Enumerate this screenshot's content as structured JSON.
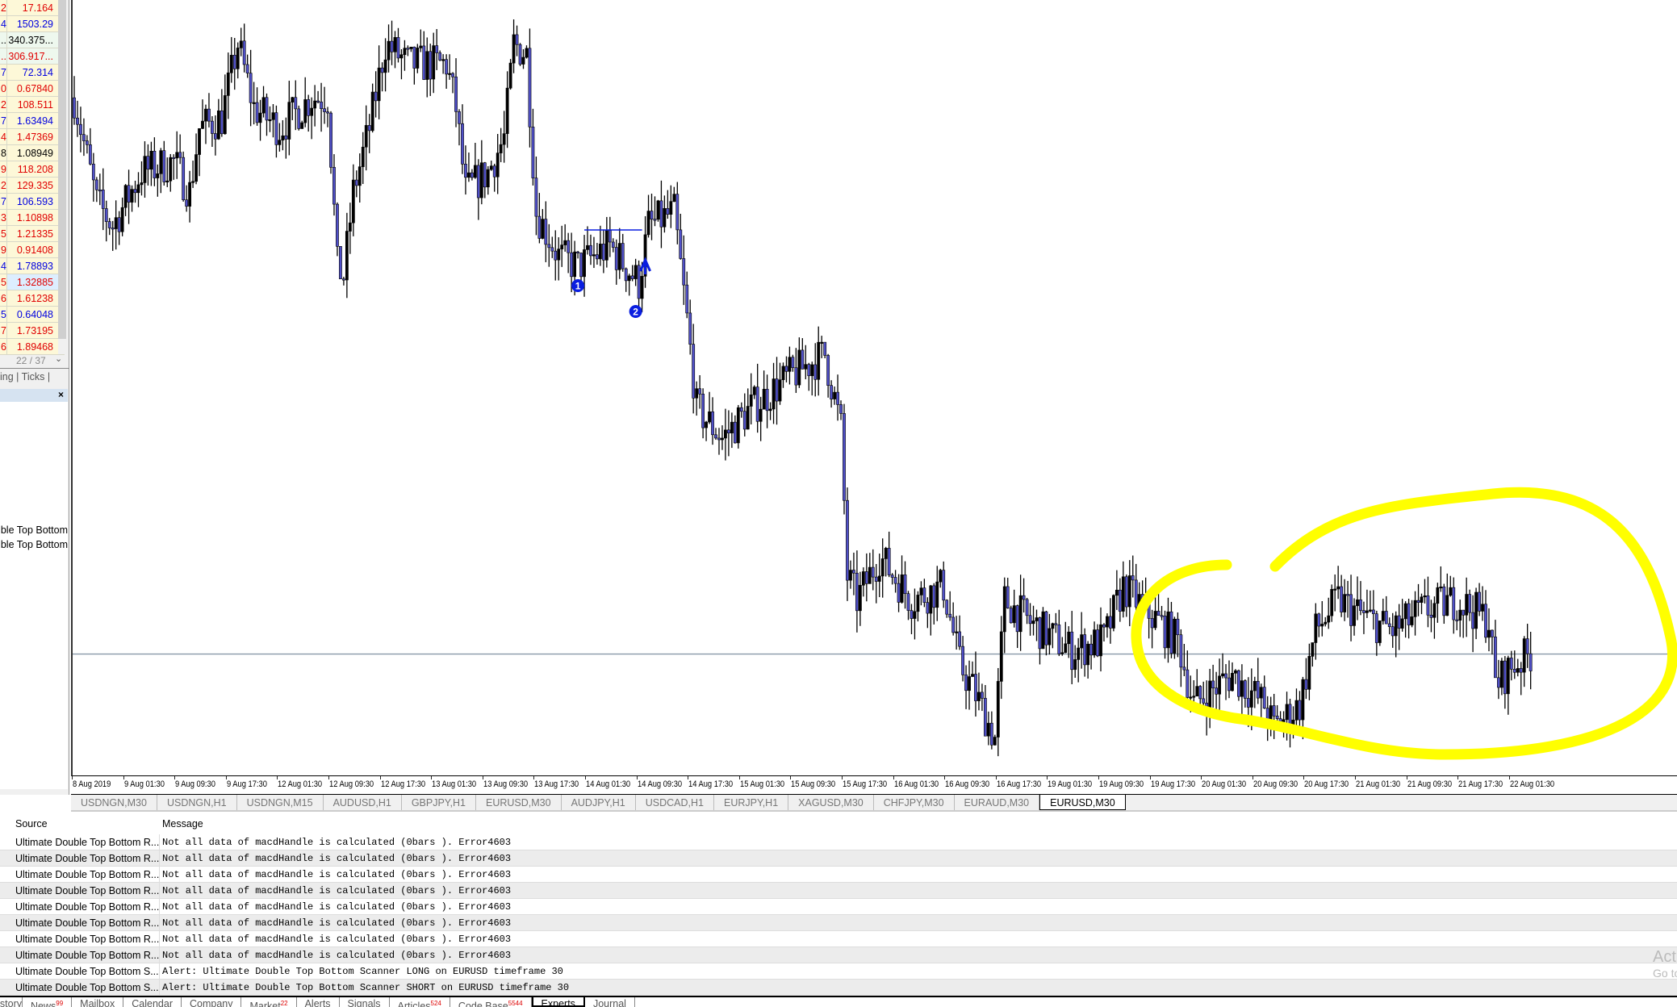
{
  "market_watch": {
    "rows": [
      {
        "bid_tail": "2",
        "ask": "17.164",
        "color": "#e00000"
      },
      {
        "bid_tail": "4",
        "ask": "1503.29",
        "color": "#0000e0"
      },
      {
        "bid_tail": "..",
        "ask": "340.375...",
        "color": "#000000"
      },
      {
        "bid_tail": "..",
        "ask": "306.917...",
        "color": "#e00000"
      },
      {
        "bid_tail": "7",
        "ask": "72.314",
        "color": "#0000e0"
      },
      {
        "bid_tail": "0",
        "ask": "0.67840",
        "color": "#e00000"
      },
      {
        "bid_tail": "2",
        "ask": "108.511",
        "color": "#e00000"
      },
      {
        "bid_tail": "7",
        "ask": "1.63494",
        "color": "#0000e0"
      },
      {
        "bid_tail": "4",
        "ask": "1.47369",
        "color": "#e00000"
      },
      {
        "bid_tail": "8",
        "ask": "1.08949",
        "color": "#000000"
      },
      {
        "bid_tail": "9",
        "ask": "118.208",
        "color": "#e00000"
      },
      {
        "bid_tail": "2",
        "ask": "129.335",
        "color": "#e00000"
      },
      {
        "bid_tail": "7",
        "ask": "106.593",
        "color": "#0000e0"
      },
      {
        "bid_tail": "3",
        "ask": "1.10898",
        "color": "#e00000"
      },
      {
        "bid_tail": "5",
        "ask": "1.21335",
        "color": "#e00000"
      },
      {
        "bid_tail": "9",
        "ask": "0.91408",
        "color": "#e00000"
      },
      {
        "bid_tail": "4",
        "ask": "1.78893",
        "color": "#0000e0"
      },
      {
        "bid_tail": "5",
        "ask": "1.32885",
        "color": "#e00000"
      },
      {
        "bid_tail": "6",
        "ask": "1.61238",
        "color": "#e00000"
      },
      {
        "bid_tail": "5",
        "ask": "0.64048",
        "color": "#0000e0"
      },
      {
        "bid_tail": "7",
        "ask": "1.73195",
        "color": "#e00000"
      },
      {
        "bid_tail": "6",
        "ask": "1.89468",
        "color": "#e00000"
      }
    ],
    "count": "22 / 37",
    "tabs": "ing  |  Ticks  |"
  },
  "navigator": {
    "items": [
      "uble Top Bottom",
      "uble Top Bottom"
    ]
  },
  "chart": {
    "x_labels": [
      "8 Aug 2019",
      "9 Aug 01:30",
      "9 Aug 09:30",
      "9 Aug 17:30",
      "12 Aug 01:30",
      "12 Aug 09:30",
      "12 Aug 17:30",
      "13 Aug 01:30",
      "13 Aug 09:30",
      "13 Aug 17:30",
      "14 Aug 01:30",
      "14 Aug 09:30",
      "14 Aug 17:30",
      "15 Aug 01:30",
      "15 Aug 09:30",
      "15 Aug 17:30",
      "16 Aug 01:30",
      "16 Aug 09:30",
      "16 Aug 17:30",
      "19 Aug 01:30",
      "19 Aug 09:30",
      "19 Aug 17:30",
      "20 Aug 01:30",
      "20 Aug 09:30",
      "20 Aug 17:30",
      "21 Aug 01:30",
      "21 Aug 09:30",
      "21 Aug 17:30",
      "22 Aug 01:30"
    ],
    "tabs": [
      "USDNGN,M30",
      "USDNGN,H1",
      "USDNGN,M15",
      "AUDUSD,H1",
      "GBPJPY,H1",
      "EURUSD,M30",
      "AUDJPY,H1",
      "USDCAD,H1",
      "EURJPY,H1",
      "XAGUSD,M30",
      "CHFJPY,M30",
      "EURAUD,M30",
      "EURUSD,M30"
    ],
    "active_tab": 12,
    "colors": {
      "bull_fill": "#000000",
      "bear_fill": "#5050c8",
      "annotation": "#ffff00",
      "marker": "#0a1ee0",
      "price_line": "#8898a8"
    },
    "markers": [
      "1",
      "2"
    ]
  },
  "chart_data": {
    "type": "candlestick",
    "symbol": "EURUSD",
    "timeframe": "M30",
    "note_units": "x = bar index from 8 Aug 2019, y = price",
    "close_path": [
      [
        0,
        1.1221
      ],
      [
        7,
        1.119
      ],
      [
        12,
        1.1183
      ],
      [
        21,
        1.1199
      ],
      [
        31,
        1.1202
      ],
      [
        36,
        1.1193
      ],
      [
        39,
        1.1212
      ],
      [
        46,
        1.1215
      ],
      [
        51,
        1.1237
      ],
      [
        56,
        1.1218
      ],
      [
        64,
        1.1212
      ],
      [
        74,
        1.1221
      ],
      [
        79,
        1.1221
      ],
      [
        82,
        1.1171
      ],
      [
        84,
        1.1168
      ],
      [
        87,
        1.1193
      ],
      [
        92,
        1.1212
      ],
      [
        97,
        1.1237
      ],
      [
        104,
        1.1231
      ],
      [
        111,
        1.1231
      ],
      [
        116,
        1.1231
      ],
      [
        119,
        1.1218
      ],
      [
        122,
        1.1193
      ],
      [
        129,
        1.1199
      ],
      [
        134,
        1.1209
      ],
      [
        137,
        1.1237
      ],
      [
        141,
        1.1234
      ],
      [
        144,
        1.1187
      ],
      [
        151,
        1.1174
      ],
      [
        157,
        1.1171
      ],
      [
        167,
        1.1177
      ],
      [
        176,
        1.1166
      ],
      [
        179,
        1.1183
      ],
      [
        187,
        1.1187
      ],
      [
        191,
        1.1155
      ],
      [
        194,
        1.1129
      ],
      [
        202,
        1.112
      ],
      [
        211,
        1.1129
      ],
      [
        224,
        1.1139
      ],
      [
        234,
        1.1145
      ],
      [
        239,
        1.1123
      ],
      [
        241,
        1.1079
      ],
      [
        244,
        1.1072
      ],
      [
        251,
        1.1085
      ],
      [
        261,
        1.1072
      ],
      [
        271,
        1.1076
      ],
      [
        276,
        1.1053
      ],
      [
        281,
        1.1044
      ],
      [
        287,
        1.1031
      ],
      [
        290,
        1.1072
      ],
      [
        297,
        1.1066
      ],
      [
        311,
        1.1057
      ],
      [
        321,
        1.106
      ],
      [
        327,
        1.1076
      ],
      [
        334,
        1.1069
      ],
      [
        344,
        1.106
      ],
      [
        349,
        1.1041
      ],
      [
        361,
        1.105
      ],
      [
        371,
        1.1041
      ],
      [
        374,
        1.1034
      ],
      [
        382,
        1.1041
      ],
      [
        387,
        1.1063
      ],
      [
        394,
        1.1072
      ],
      [
        404,
        1.1066
      ],
      [
        411,
        1.1063
      ],
      [
        421,
        1.1069
      ],
      [
        431,
        1.1072
      ],
      [
        441,
        1.1066
      ],
      [
        443,
        1.1047
      ],
      [
        449,
        1.1053
      ],
      [
        454,
        1.1056
      ]
    ],
    "current_price_line": 1.1056,
    "ylim": [
      1.102,
      1.125
    ]
  },
  "terminal": {
    "headers": {
      "source": "Source",
      "message": "Message"
    },
    "rows": [
      {
        "source": "Ultimate Double Top Bottom R...",
        "message": "Not all data of macdHandle is calculated (0bars ). Error4603"
      },
      {
        "source": "Ultimate Double Top Bottom R...",
        "message": "Not all data of macdHandle is calculated (0bars ). Error4603"
      },
      {
        "source": "Ultimate Double Top Bottom R...",
        "message": "Not all data of macdHandle is calculated (0bars ). Error4603"
      },
      {
        "source": "Ultimate Double Top Bottom R...",
        "message": "Not all data of macdHandle is calculated (0bars ). Error4603"
      },
      {
        "source": "Ultimate Double Top Bottom R...",
        "message": "Not all data of macdHandle is calculated (0bars ). Error4603"
      },
      {
        "source": "Ultimate Double Top Bottom R...",
        "message": "Not all data of macdHandle is calculated (0bars ). Error4603"
      },
      {
        "source": "Ultimate Double Top Bottom R...",
        "message": "Not all data of macdHandle is calculated (0bars ). Error4603"
      },
      {
        "source": "Ultimate Double Top Bottom R...",
        "message": "Not all data of macdHandle is calculated (0bars ). Error4603"
      },
      {
        "source": "Ultimate Double Top Bottom S...",
        "message": "Alert: Ultimate Double Top Bottom Scanner LONG on EURUSD timeframe 30"
      },
      {
        "source": "Ultimate Double Top Bottom S...",
        "message": "Alert: Ultimate Double Top Bottom Scanner SHORT on EURUSD timeframe 30"
      }
    ],
    "tabs": [
      {
        "label": "History",
        "badge": ""
      },
      {
        "label": "News",
        "badge": "99"
      },
      {
        "label": "Mailbox",
        "badge": ""
      },
      {
        "label": "Calendar",
        "badge": ""
      },
      {
        "label": "Company",
        "badge": ""
      },
      {
        "label": "Market",
        "badge": "22"
      },
      {
        "label": "Alerts",
        "badge": ""
      },
      {
        "label": "Signals",
        "badge": ""
      },
      {
        "label": "Articles",
        "badge": "524"
      },
      {
        "label": "Code Base",
        "badge": "5544"
      },
      {
        "label": "Experts",
        "badge": ""
      },
      {
        "label": "Journal",
        "badge": ""
      }
    ],
    "active_tab": 10
  },
  "watermark": {
    "line1": "Activate Windows",
    "line2": "Go to Settings to activate Windows."
  }
}
